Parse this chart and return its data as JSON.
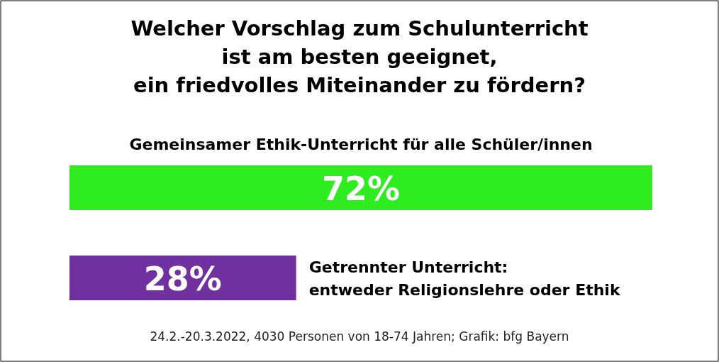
{
  "chart_data": {
    "type": "bar",
    "orientation": "horizontal",
    "title": "Welcher Vorschlag zum Schulunterricht\nist am besten geeignet,\nein friedvolles Miteinander zu fördern?",
    "categories": [
      "Gemeinsamer Ethik-Unterricht für alle Schüler/innen",
      "Getrennter Unterricht:\nentweder Religionslehre oder Ethik"
    ],
    "values": [
      72,
      28
    ],
    "value_labels": [
      "72%",
      "28%"
    ],
    "colors": [
      "#2eec1f",
      "#7030a0"
    ],
    "annotations": [
      "24.2.-20.3.2022, 4030 Personen von 18-74 Jahren; Grafik: bfg Bayern"
    ]
  }
}
